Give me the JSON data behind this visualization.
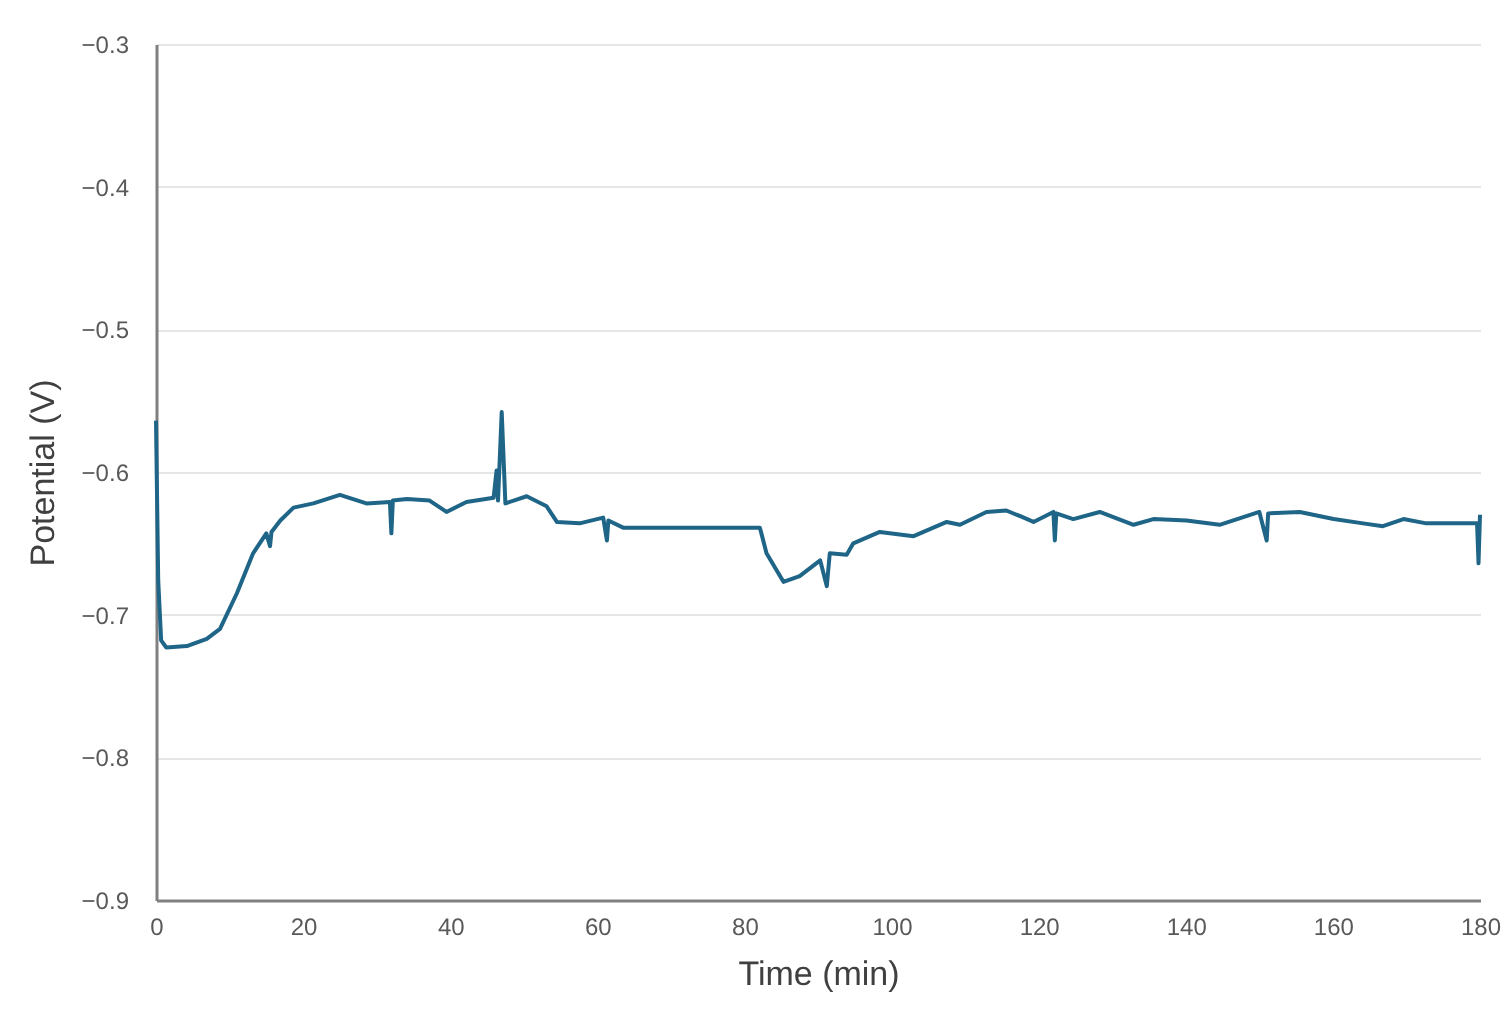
{
  "chart_data": {
    "type": "line",
    "xlabel": "Time (min)",
    "ylabel": "Potential (V)",
    "x": [
      0,
      0.3,
      0.7,
      1.4,
      4.2,
      6.9,
      8.7,
      11.0,
      13.2,
      15.0,
      15.5,
      15.7,
      16.9,
      18.7,
      21.4,
      25.0,
      28.6,
      31.8,
      32.0,
      32.2,
      34.1,
      37.2,
      39.5,
      42.2,
      45.9,
      46.3,
      46.5,
      47.0,
      47.5,
      50.4,
      53.1,
      54.5,
      57.6,
      60.8,
      61.3,
      61.5,
      63.5,
      82.1,
      83.0,
      85.3,
      87.5,
      90.3,
      91.2,
      91.6,
      93.9,
      94.8,
      98.4,
      103.0,
      107.5,
      109.3,
      112.9,
      115.6,
      117.5,
      119.3,
      122.0,
      122.2,
      122.4,
      124.7,
      128.3,
      132.9,
      135.6,
      140.1,
      144.6,
      150.0,
      151.0,
      151.2,
      155.5,
      160.1,
      164.1,
      166.8,
      169.6,
      172.7,
      178.2,
      179.6,
      179.8,
      180
    ],
    "series": [
      {
        "color": "#1f6587",
        "values": [
          -0.564,
          -0.676,
          -0.718,
          -0.723,
          -0.722,
          -0.717,
          -0.71,
          -0.685,
          -0.657,
          -0.643,
          -0.652,
          -0.642,
          -0.634,
          -0.625,
          -0.622,
          -0.616,
          -0.622,
          -0.621,
          -0.643,
          -0.62,
          -0.619,
          -0.62,
          -0.628,
          -0.621,
          -0.618,
          -0.599,
          -0.62,
          -0.558,
          -0.622,
          -0.617,
          -0.624,
          -0.635,
          -0.636,
          -0.632,
          -0.648,
          -0.634,
          -0.639,
          -0.639,
          -0.657,
          -0.677,
          -0.673,
          -0.662,
          -0.68,
          -0.657,
          -0.658,
          -0.65,
          -0.642,
          -0.645,
          -0.635,
          -0.637,
          -0.628,
          -0.627,
          -0.631,
          -0.635,
          -0.628,
          -0.648,
          -0.629,
          -0.633,
          -0.628,
          -0.637,
          -0.633,
          -0.634,
          -0.637,
          -0.628,
          -0.648,
          -0.629,
          -0.628,
          -0.633,
          -0.636,
          -0.638,
          -0.633,
          -0.636,
          -0.636,
          -0.636,
          -0.664,
          -0.63
        ]
      }
    ],
    "xlim": [
      0,
      180
    ],
    "xticks": [
      0,
      20,
      40,
      60,
      80,
      100,
      120,
      140,
      160,
      180
    ],
    "ylim": [
      -0.9,
      -0.3
    ],
    "yticks": [
      -0.9,
      -0.8,
      -0.7,
      -0.6,
      -0.5,
      -0.4,
      -0.3
    ],
    "grid": "y",
    "marker": "none",
    "line_style": "solid"
  }
}
